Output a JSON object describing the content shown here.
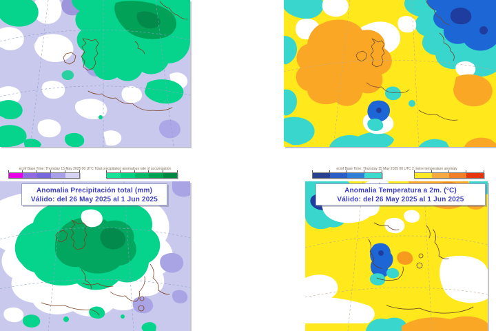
{
  "page": {
    "description": "Four ECMWF weekly anomaly forecast map panels: precipitation anomaly (left column, purple/green palette) and 2 m temperature anomaly (right column, blue/yellow/orange palette). Upper maps are cropped (no titles visible); lower maps show legend bars and title boxes."
  },
  "precip_panel": {
    "header": "ecmf  Base Time: Thursday 15 May 2025 00 UTC Total precipitation anomalous rate of accumulation",
    "title_line1": "Anomalia Precipitación total (mm)",
    "title_line2": "Válido: del 26 May 2025 al 1 Jun 2025",
    "colorbar_negative": [
      "#e800e8",
      "#8f6ae0",
      "#7668da",
      "#a79fe8",
      "#d6d2f4"
    ],
    "colorbar_positive": [
      "#17e297",
      "#00d080",
      "#00b866",
      "#00a254",
      "#008741"
    ]
  },
  "temp_panel": {
    "header": "ecmf  Base Time: Thursday 15 May 2025 00 UTC 2 metre temperature anomaly",
    "title_line1": "Anomalia Temperatura a 2m. (°C)",
    "title_line2": "Válido: del 26 May 2025 al 1 Jun 2025",
    "colorbar_negative": [
      "#27418f",
      "#2a5ec5",
      "#2f7fd6",
      "#3cd9cf"
    ],
    "colorbar_positive": [
      "#ffe926",
      "#f5a742",
      "#f07d28",
      "#e5350f"
    ]
  },
  "map_colors": {
    "precip_background_dry": "#c9c9ed",
    "precip_dry_darker": "#a9a4e4",
    "precip_wet_green": "#06d48c",
    "precip_wet_dark_green": "#02a65f",
    "precip_neutral_white": "#ffffff",
    "temp_background_warm_yellow": "#ffe81c",
    "temp_warm_orange": "#fba726",
    "temp_cool_cyan": "#38d6cd",
    "temp_cool_blue": "#1d66d6",
    "temp_cool_navy": "#1f3d9e",
    "coastline_precip": "#7b4020",
    "coastline_temp": "#5c3a28"
  }
}
